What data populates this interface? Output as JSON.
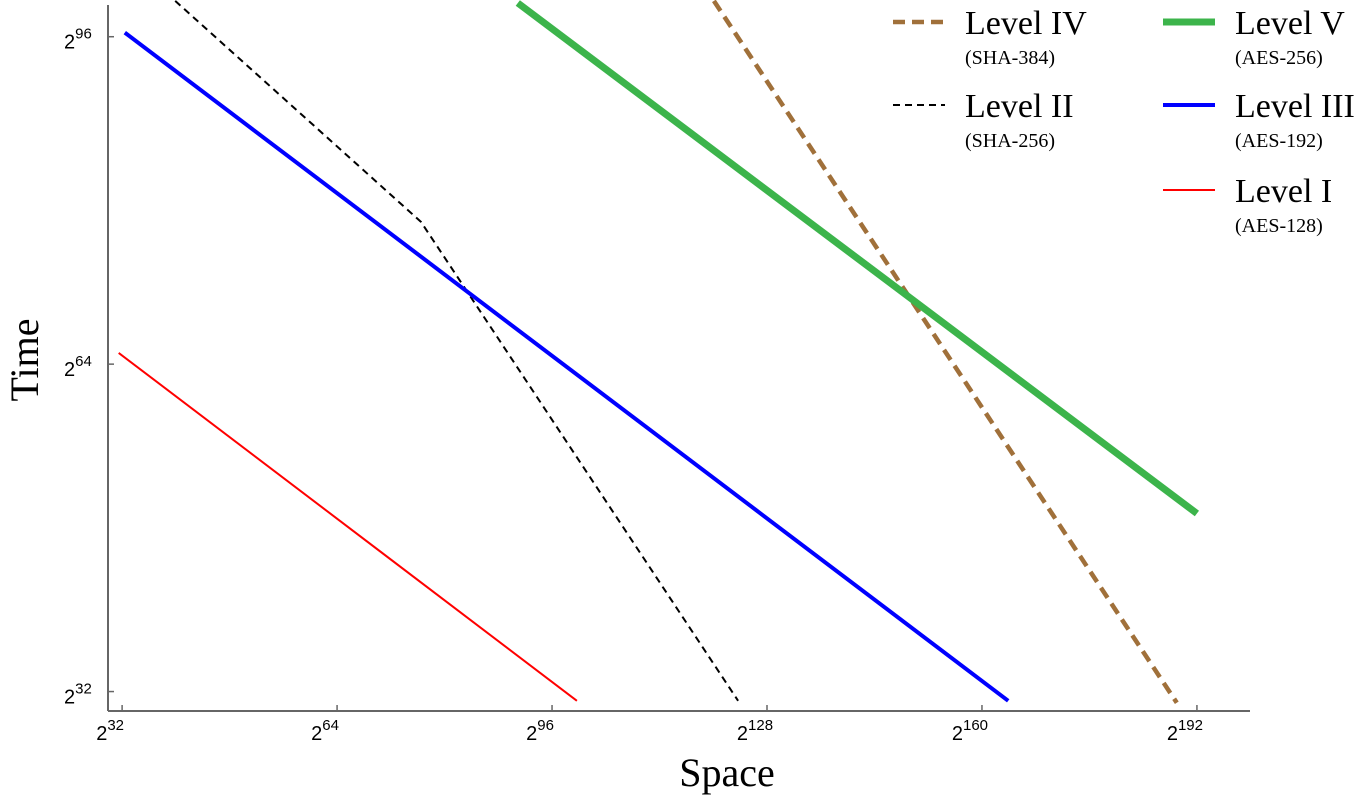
{
  "chart_data": {
    "type": "line",
    "x_label": "Space",
    "y_label": "Time",
    "xlim": [
      29.9,
      199.9
    ],
    "ylim": [
      30.1,
      99.1
    ],
    "xticks": [
      {
        "value": 32,
        "label": "2^32"
      },
      {
        "value": 64,
        "label": "2^64"
      },
      {
        "value": 96,
        "label": "2^96"
      },
      {
        "value": 128,
        "label": "2^128"
      },
      {
        "value": 160,
        "label": "2^160"
      },
      {
        "value": 192,
        "label": "2^192"
      }
    ],
    "yticks": [
      {
        "value": 32,
        "label": "2^32"
      },
      {
        "value": 64,
        "label": "2^64"
      },
      {
        "value": 96,
        "label": "2^96"
      }
    ],
    "series": [
      {
        "name": "Level I",
        "subtitle": "(AES-128)",
        "color": "#ff0000",
        "dashed": false,
        "width": 2,
        "x": [
          31.5,
          99.7
        ],
        "values": [
          65.1,
          31.1
        ]
      },
      {
        "name": "Level II",
        "subtitle": "(SHA-256)",
        "color": "#000000",
        "dashed": true,
        "width": 2,
        "x": [
          39.9,
          76.5,
          123.7
        ],
        "values": [
          99.5,
          77.9,
          31.1
        ]
      },
      {
        "name": "Level III",
        "subtitle": "(AES-192)",
        "color": "#0000ff",
        "dashed": false,
        "width": 4,
        "x": [
          32.4,
          163.9
        ],
        "values": [
          96.4,
          31.1
        ]
      },
      {
        "name": "Level IV",
        "subtitle": "(SHA-384)",
        "color": "#a0703a",
        "dashed": true,
        "width": 4.5,
        "x": [
          120.1,
          189.0
        ],
        "values": [
          99.5,
          30.9
        ]
      },
      {
        "name": "Level V",
        "subtitle": "(AES-256)",
        "color": "#3cb44b",
        "dashed": false,
        "width": 7,
        "x": [
          90.9,
          192.0
        ],
        "values": [
          99.3,
          49.4
        ]
      }
    ]
  }
}
